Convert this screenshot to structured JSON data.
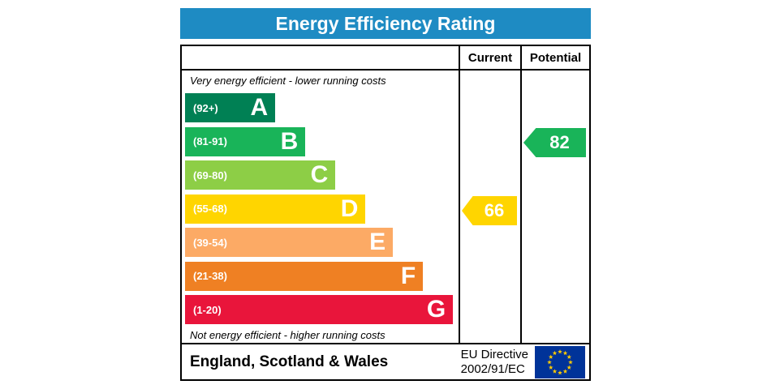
{
  "title": "Energy Efficiency Rating",
  "header": {
    "current": "Current",
    "potential": "Potential"
  },
  "notes": {
    "top": "Very energy efficient - lower running costs",
    "bottom": "Not energy efficient - higher running costs"
  },
  "footer": {
    "region": "England, Scotland & Wales",
    "directive_line1": "EU Directive",
    "directive_line2": "2002/91/EC"
  },
  "colors": {
    "title_bg": "#1e8bc3",
    "title_text": "#ffffff",
    "border": "#000000",
    "eu_flag_bg": "#003399",
    "eu_flag_star": "#ffcc00"
  },
  "chart_data": {
    "type": "bar",
    "title": "Energy Efficiency Rating",
    "legend_position": "none",
    "categories": [
      "A",
      "B",
      "C",
      "D",
      "E",
      "F",
      "G"
    ],
    "bands": [
      {
        "letter": "A",
        "range": "(92+)",
        "min": 92,
        "max": 100,
        "color": "#008054",
        "width_pct": 33
      },
      {
        "letter": "B",
        "range": "(81-91)",
        "min": 81,
        "max": 91,
        "color": "#19b459",
        "width_pct": 44
      },
      {
        "letter": "C",
        "range": "(69-80)",
        "min": 69,
        "max": 80,
        "color": "#8dce46",
        "width_pct": 55
      },
      {
        "letter": "D",
        "range": "(55-68)",
        "min": 55,
        "max": 68,
        "color": "#ffd500",
        "width_pct": 66
      },
      {
        "letter": "E",
        "range": "(39-54)",
        "min": 39,
        "max": 54,
        "color": "#fcaa65",
        "width_pct": 76
      },
      {
        "letter": "F",
        "range": "(21-38)",
        "min": 21,
        "max": 38,
        "color": "#ef8023",
        "width_pct": 87
      },
      {
        "letter": "G",
        "range": "(1-20)",
        "min": 1,
        "max": 20,
        "color": "#e9153b",
        "width_pct": 98
      }
    ],
    "current": {
      "value": 66,
      "band": "D",
      "band_index": 3,
      "color": "#ffd500"
    },
    "potential": {
      "value": 82,
      "band": "B",
      "band_index": 1,
      "color": "#19b459"
    }
  }
}
